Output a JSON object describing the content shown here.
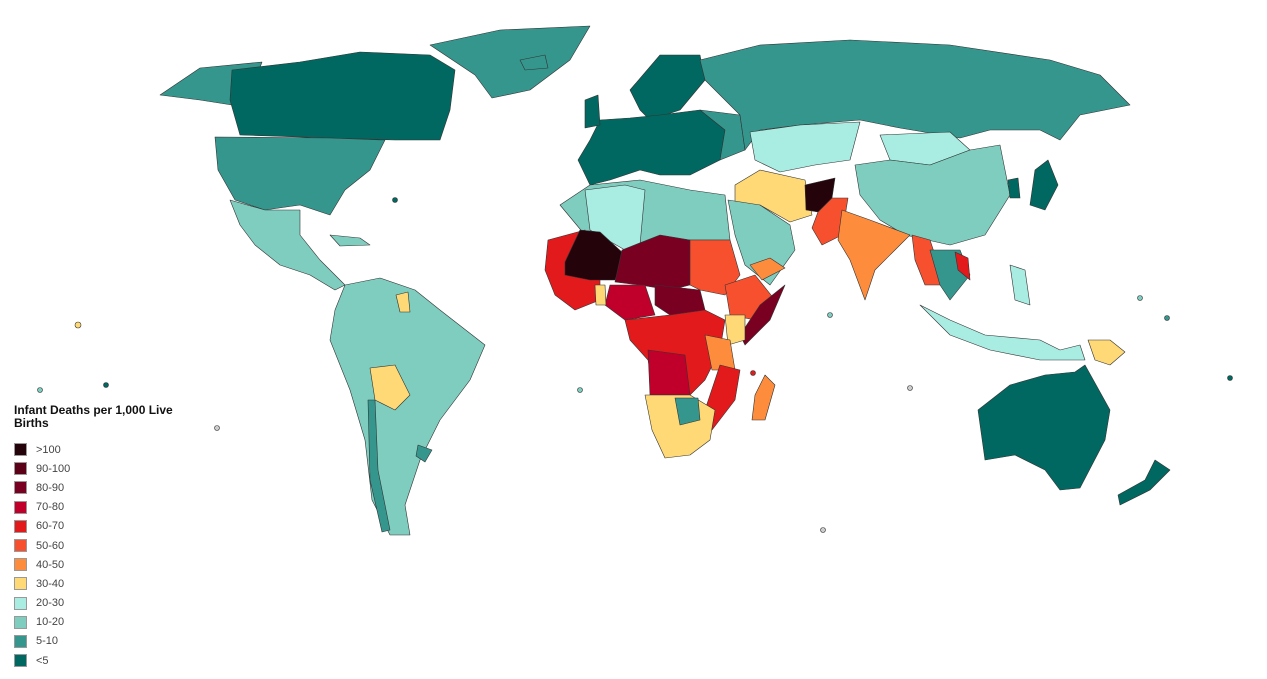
{
  "legend": {
    "title": "Infant Deaths per 1,000 Live Births",
    "items": [
      {
        "label": ">100",
        "color": "#25030b"
      },
      {
        "label": "90-100",
        "color": "#5c0018"
      },
      {
        "label": "80-90",
        "color": "#7a0022"
      },
      {
        "label": "70-80",
        "color": "#c0002a"
      },
      {
        "label": "60-70",
        "color": "#e31a1c"
      },
      {
        "label": "50-60",
        "color": "#f7502e"
      },
      {
        "label": "40-50",
        "color": "#fd8d3c"
      },
      {
        "label": "30-40",
        "color": "#fed976"
      },
      {
        "label": "20-30",
        "color": "#a9ece2"
      },
      {
        "label": "10-20",
        "color": "#7ecdbf"
      },
      {
        "label": "5-10",
        "color": "#35968e"
      },
      {
        "label": "<5",
        "color": "#006860"
      }
    ]
  }
}
